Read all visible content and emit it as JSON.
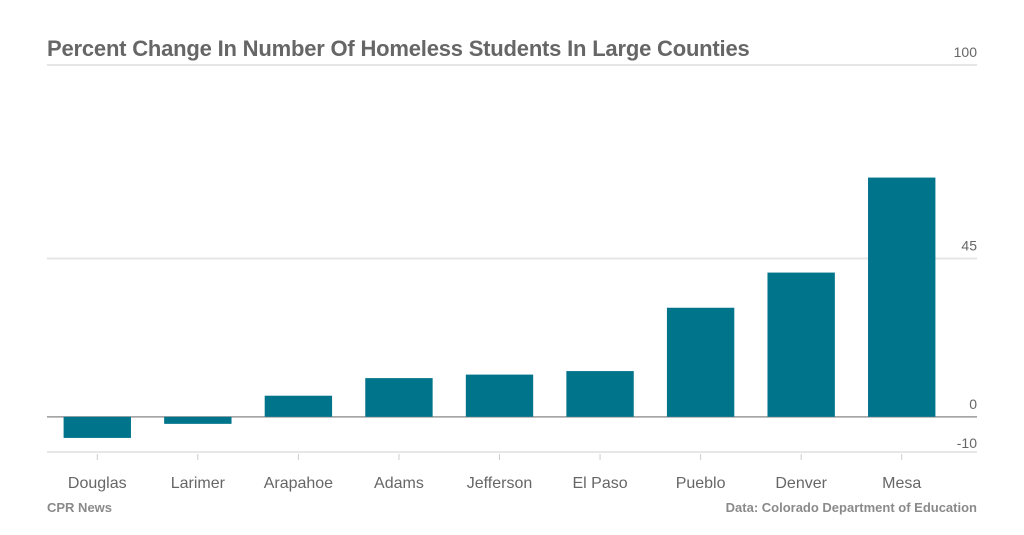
{
  "title": "Percent Change In Number Of Homeless Students In Large Counties",
  "credit": "CPR News",
  "source": "Data: Colorado Department of Education",
  "colors": {
    "bar": "#00748a",
    "grid": "#e6e6e6",
    "zero": "#9a9a9a",
    "text": "#666666"
  },
  "chart_data": {
    "type": "bar",
    "categories": [
      "Douglas",
      "Larimer",
      "Arapahoe",
      "Adams",
      "Jefferson",
      "El Paso",
      "Pueblo",
      "Denver",
      "Mesa"
    ],
    "values": [
      -6,
      -2,
      6,
      11,
      12,
      13,
      31,
      41,
      68
    ],
    "ylim": [
      -10,
      100
    ],
    "yticks": [
      100,
      45,
      0,
      -10
    ],
    "xlabel": "",
    "ylabel": "",
    "grid": true
  }
}
